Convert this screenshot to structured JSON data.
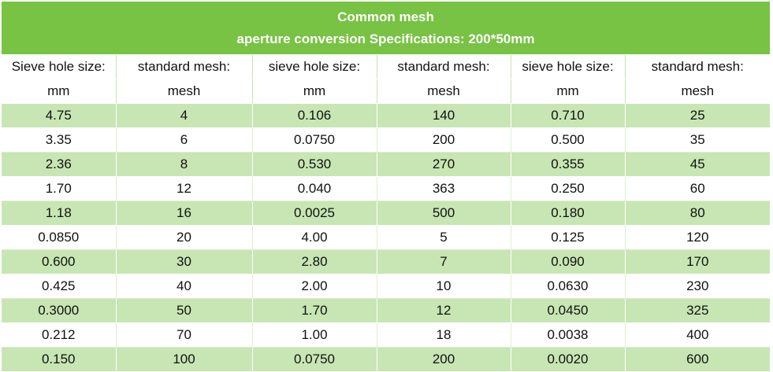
{
  "title": {
    "line1": "Common mesh",
    "line2": "aperture conversion Specifications: 200*50mm"
  },
  "headers": [
    {
      "top": "Sieve hole size:",
      "bottom": "mm"
    },
    {
      "top": "standard mesh:",
      "bottom": "mesh"
    },
    {
      "top": "sieve hole size:",
      "bottom": "mm"
    },
    {
      "top": "standard mesh:",
      "bottom": "mesh"
    },
    {
      "top": "sieve hole size:",
      "bottom": "mm"
    },
    {
      "top": "standard mesh:",
      "bottom": "mesh"
    }
  ],
  "rows": [
    [
      "4.75",
      "4",
      "0.106",
      "140",
      "0.710",
      "25"
    ],
    [
      "3.35",
      "6",
      "0.0750",
      "200",
      "0.500",
      "35"
    ],
    [
      "2.36",
      "8",
      "0.530",
      "270",
      "0.355",
      "45"
    ],
    [
      "1.70",
      "12",
      "0.040",
      "363",
      "0.250",
      "60"
    ],
    [
      "1.18",
      "16",
      "0.0025",
      "500",
      "0.180",
      "80"
    ],
    [
      "0.0850",
      "20",
      "4.00",
      "5",
      "0.125",
      "120"
    ],
    [
      "0.600",
      "30",
      "2.80",
      "7",
      "0.090",
      "170"
    ],
    [
      "0.425",
      "40",
      "2.00",
      "10",
      "0.0630",
      "230"
    ],
    [
      "0.3000",
      "50",
      "1.70",
      "12",
      "0.0450",
      "325"
    ],
    [
      "0.212",
      "70",
      "1.00",
      "18",
      "0.0038",
      "400"
    ],
    [
      "0.150",
      "100",
      "0.0750",
      "200",
      "0.0020",
      "600"
    ]
  ],
  "colors": {
    "title_band": "#78c244",
    "row_band": "#c7e6b3",
    "row_plain": "#ffffff"
  }
}
